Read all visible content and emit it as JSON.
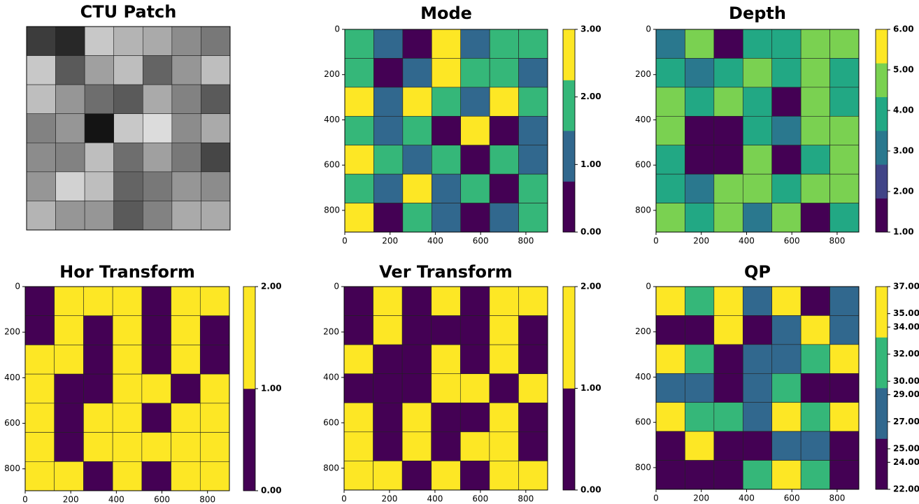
{
  "chart_data": [
    {
      "type": "heatmap",
      "title": "CTU Patch",
      "colormap": "gray",
      "clim": [
        0,
        255
      ],
      "xlim": [
        0,
        896
      ],
      "ylim": [
        896,
        0
      ],
      "z": [
        [
          60,
          40,
          200,
          180,
          170,
          140,
          120
        ],
        [
          200,
          90,
          160,
          190,
          100,
          150,
          190
        ],
        [
          190,
          150,
          110,
          90,
          170,
          130,
          90
        ],
        [
          130,
          150,
          20,
          200,
          220,
          140,
          170
        ],
        [
          140,
          130,
          190,
          110,
          160,
          120,
          70
        ],
        [
          150,
          210,
          190,
          100,
          120,
          150,
          140
        ],
        [
          180,
          150,
          150,
          90,
          130,
          170,
          170
        ]
      ]
    },
    {
      "type": "heatmap",
      "title": "Mode",
      "clim": [
        0,
        3
      ],
      "colors": [
        "#440154",
        "#31688e",
        "#35b779",
        "#fde725"
      ],
      "xlim": [
        0,
        896
      ],
      "ylim": [
        896,
        0
      ],
      "xticks": [
        0,
        200,
        400,
        600,
        800
      ],
      "yticks": [
        0,
        200,
        400,
        600,
        800
      ],
      "cticks": [
        {
          "value": 0,
          "label": "0.00"
        },
        {
          "value": 1,
          "label": "1.00"
        },
        {
          "value": 2,
          "label": "2.00"
        },
        {
          "value": 3,
          "label": "3.00"
        }
      ],
      "z": [
        [
          2,
          1,
          0,
          3,
          1,
          2,
          2
        ],
        [
          2,
          0,
          1,
          3,
          2,
          2,
          1
        ],
        [
          3,
          1,
          3,
          2,
          1,
          3,
          2
        ],
        [
          2,
          1,
          2,
          0,
          3,
          0,
          1
        ],
        [
          3,
          2,
          1,
          2,
          0,
          2,
          1
        ],
        [
          2,
          1,
          3,
          1,
          2,
          0,
          2
        ],
        [
          3,
          0,
          2,
          1,
          0,
          1,
          2
        ]
      ]
    },
    {
      "type": "heatmap",
      "title": "Depth",
      "clim": [
        1,
        6
      ],
      "colors": [
        "#440154",
        "#414487",
        "#2a788e",
        "#22a884",
        "#7ad151",
        "#fde725"
      ],
      "xlim": [
        0,
        896
      ],
      "ylim": [
        896,
        0
      ],
      "xticks": [
        0,
        200,
        400,
        600,
        800
      ],
      "yticks": [
        0,
        200,
        400,
        600,
        800
      ],
      "cticks": [
        {
          "value": 1,
          "label": "1.00"
        },
        {
          "value": 2,
          "label": "2.00"
        },
        {
          "value": 3,
          "label": "3.00"
        },
        {
          "value": 4,
          "label": "4.00"
        },
        {
          "value": 5,
          "label": "5.00"
        },
        {
          "value": 6,
          "label": "6.00"
        }
      ],
      "z": [
        [
          3,
          5,
          1,
          4,
          4,
          5,
          5
        ],
        [
          4,
          3,
          4,
          5,
          4,
          5,
          4
        ],
        [
          5,
          4,
          5,
          4,
          1,
          5,
          4
        ],
        [
          5,
          1,
          1,
          4,
          3,
          5,
          5
        ],
        [
          4,
          1,
          1,
          5,
          1,
          4,
          5
        ],
        [
          4,
          3,
          5,
          5,
          4,
          5,
          5
        ],
        [
          5,
          4,
          5,
          3,
          5,
          1,
          4
        ]
      ]
    },
    {
      "type": "heatmap",
      "title": "Hor Transform",
      "clim": [
        0,
        2
      ],
      "colors": [
        "#440154",
        "#fde725"
      ],
      "xlim": [
        0,
        896
      ],
      "ylim": [
        896,
        0
      ],
      "xticks": [
        0,
        200,
        400,
        600,
        800
      ],
      "yticks": [
        0,
        200,
        400,
        600,
        800
      ],
      "cticks": [
        {
          "value": 0,
          "label": "0.00"
        },
        {
          "value": 1,
          "label": "1.00"
        },
        {
          "value": 2,
          "label": "2.00"
        }
      ],
      "z": [
        [
          0,
          2,
          2,
          2,
          0,
          2,
          2
        ],
        [
          0,
          2,
          0,
          2,
          0,
          2,
          0
        ],
        [
          2,
          2,
          0,
          2,
          0,
          2,
          0
        ],
        [
          2,
          0,
          0,
          2,
          2,
          0,
          2
        ],
        [
          2,
          0,
          2,
          2,
          0,
          2,
          2
        ],
        [
          2,
          0,
          2,
          2,
          2,
          2,
          2
        ],
        [
          2,
          2,
          0,
          2,
          0,
          2,
          2
        ]
      ]
    },
    {
      "type": "heatmap",
      "title": "Ver Transform",
      "clim": [
        0,
        2
      ],
      "colors": [
        "#440154",
        "#fde725"
      ],
      "xlim": [
        0,
        896
      ],
      "ylim": [
        896,
        0
      ],
      "xticks": [
        0,
        200,
        400,
        600,
        800
      ],
      "yticks": [
        0,
        200,
        400,
        600,
        800
      ],
      "cticks": [
        {
          "value": 0,
          "label": "0.00"
        },
        {
          "value": 1,
          "label": "1.00"
        },
        {
          "value": 2,
          "label": "2.00"
        }
      ],
      "z": [
        [
          0,
          2,
          0,
          2,
          0,
          2,
          2
        ],
        [
          0,
          2,
          0,
          0,
          0,
          2,
          0
        ],
        [
          2,
          0,
          0,
          2,
          0,
          2,
          0
        ],
        [
          0,
          0,
          0,
          2,
          2,
          0,
          2
        ],
        [
          2,
          0,
          2,
          0,
          0,
          2,
          0
        ],
        [
          2,
          0,
          2,
          0,
          2,
          2,
          0
        ],
        [
          2,
          2,
          0,
          2,
          0,
          2,
          2
        ]
      ]
    },
    {
      "type": "heatmap",
      "title": "QP",
      "clim": [
        22,
        37
      ],
      "colors": [
        "#440154",
        "#31688e",
        "#35b779",
        "#fde725"
      ],
      "xlim": [
        0,
        896
      ],
      "ylim": [
        896,
        0
      ],
      "xticks": [
        0,
        200,
        400,
        600,
        800
      ],
      "yticks": [
        0,
        200,
        400,
        600,
        800
      ],
      "cticks": [
        {
          "value": 22,
          "label": "22.00"
        },
        {
          "value": 24,
          "label": "24.00"
        },
        {
          "value": 25,
          "label": "25.00"
        },
        {
          "value": 27,
          "label": "27.00"
        },
        {
          "value": 29,
          "label": "29.00"
        },
        {
          "value": 30,
          "label": "30.00"
        },
        {
          "value": 32,
          "label": "32.00"
        },
        {
          "value": 34,
          "label": "34.00"
        },
        {
          "value": 35,
          "label": "35.00"
        },
        {
          "value": 37,
          "label": "37.00"
        }
      ],
      "z": [
        [
          37,
          32,
          37,
          27,
          37,
          22,
          27
        ],
        [
          22,
          22,
          37,
          22,
          27,
          37,
          27
        ],
        [
          37,
          32,
          22,
          27,
          27,
          32,
          37
        ],
        [
          27,
          27,
          22,
          27,
          32,
          22,
          22
        ],
        [
          37,
          32,
          32,
          27,
          37,
          32,
          37
        ],
        [
          22,
          37,
          22,
          22,
          27,
          27,
          22
        ],
        [
          22,
          22,
          22,
          32,
          37,
          32,
          22
        ]
      ]
    }
  ]
}
